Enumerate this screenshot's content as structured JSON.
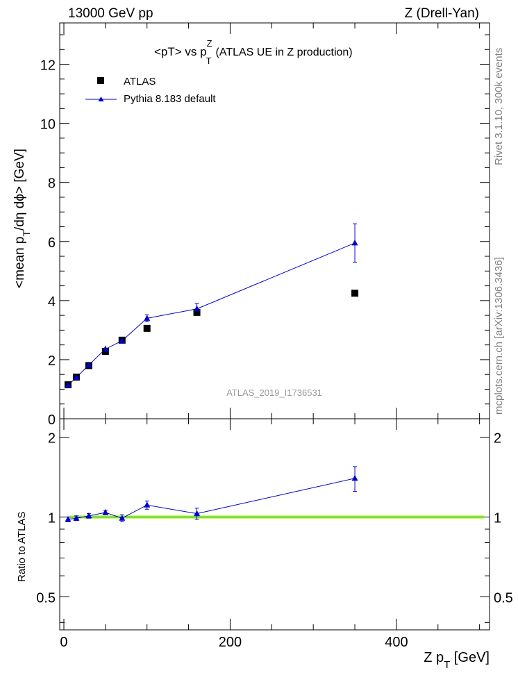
{
  "header": {
    "left": "13000 GeV pp",
    "right": "Z (Drell-Yan)"
  },
  "side_labels": {
    "rivet": "Rivet 3.1.10,  300k events",
    "mcplots": "mcplots.cern.ch [arXiv:1306.3436]"
  },
  "chart_data": [
    {
      "panel": "main",
      "type": "scatter",
      "title": "<pT> vs p_T^Z (ATLAS UE in Z production)",
      "title_parts": {
        "pre": "<pT> vs p",
        "sup": "Z",
        "sub": "T",
        "post": "(ATLAS UE in Z production)"
      },
      "ylabel": "<mean p_T/dη dϕ> [GeV]",
      "ylabel_parts": {
        "pre": "<mean p",
        "sub": "T",
        "post": "/dη dϕ> [GeV]"
      },
      "xlabel": "",
      "xlim": [
        -5,
        512
      ],
      "ylim": [
        0,
        13.4
      ],
      "yticks": [
        0,
        2,
        4,
        6,
        8,
        10,
        12
      ],
      "ytick_labels": [
        "0",
        "2",
        "4",
        "6",
        "8",
        "10",
        "12"
      ],
      "watermark": "ATLAS_2019_I1736531",
      "legend_position": "top-left",
      "series": [
        {
          "name": "ATLAS",
          "marker": "square",
          "color": "#000000",
          "x": [
            5,
            15,
            30,
            50,
            70,
            100,
            160,
            350
          ],
          "y": [
            1.15,
            1.41,
            1.8,
            2.28,
            2.66,
            3.06,
            3.6,
            4.25
          ]
        },
        {
          "name": "Pythia 8.183 default",
          "marker": "triangle",
          "color": "#0000cc",
          "x": [
            5,
            15,
            30,
            50,
            70,
            100,
            160,
            350
          ],
          "y": [
            1.13,
            1.4,
            1.82,
            2.36,
            2.64,
            3.4,
            3.72,
            5.95
          ],
          "yerr": [
            0.03,
            0.04,
            0.05,
            0.06,
            0.07,
            0.12,
            0.18,
            0.65
          ]
        }
      ]
    },
    {
      "panel": "ratio",
      "type": "line",
      "ylabel": "Ratio to ATLAS",
      "xlabel": "Z p_T [GeV]",
      "xlabel_parts": {
        "pre": "Z p",
        "sub": "T",
        "post": " [GeV]"
      },
      "xlim": [
        -5,
        512
      ],
      "ylim": [
        0.375,
        2.35
      ],
      "yscale": "log",
      "yticks": [
        0.5,
        1,
        2
      ],
      "ytick_labels": [
        "0.5",
        "1",
        "2"
      ],
      "xticks": [
        0,
        200,
        400
      ],
      "xtick_labels": [
        "0",
        "200",
        "400"
      ],
      "reference": {
        "name": "ATLAS",
        "value": 1.0,
        "band_color": "#ccff66",
        "line_color": "#009900"
      },
      "series": [
        {
          "name": "Pythia 8.183 default",
          "marker": "triangle",
          "color": "#0000cc",
          "x": [
            5,
            15,
            30,
            50,
            70,
            100,
            160,
            350
          ],
          "y": [
            0.98,
            0.99,
            1.01,
            1.04,
            0.99,
            1.11,
            1.03,
            1.4
          ],
          "yerr": [
            0.02,
            0.02,
            0.02,
            0.02,
            0.03,
            0.04,
            0.05,
            0.15
          ]
        }
      ]
    }
  ]
}
